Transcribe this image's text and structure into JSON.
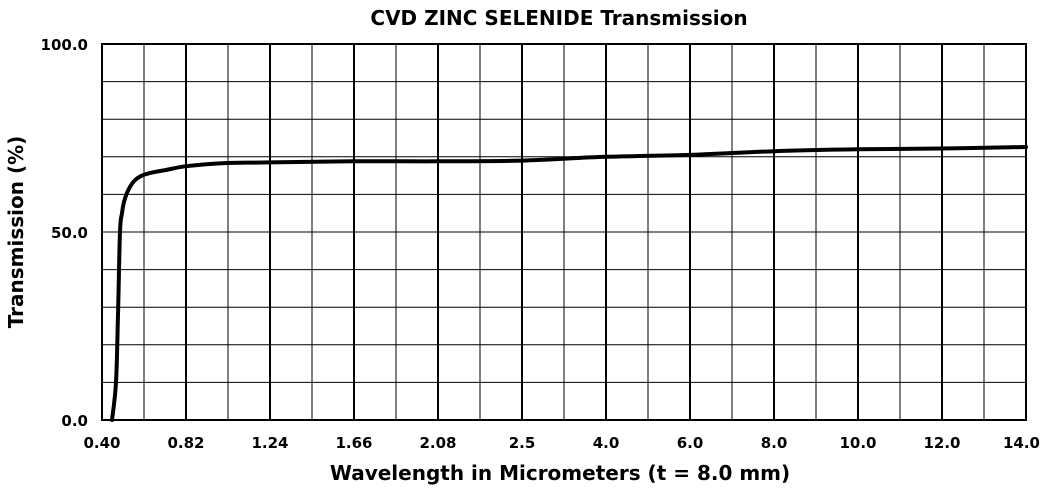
{
  "chart_data": {
    "type": "line",
    "title": "CVD ZINC SELENIDE Transmission",
    "xlabel": "Wavelength in Micrometers (t = 8.0 mm)",
    "ylabel": "Transmission  (%)",
    "ylim": [
      0,
      100
    ],
    "y_ticks": [
      "0.0",
      "50.0",
      "100.0"
    ],
    "y_tick_values": [
      0,
      50,
      100
    ],
    "y_grid_values": [
      0,
      10,
      20,
      30,
      40,
      50,
      60,
      70,
      80,
      90,
      100
    ],
    "x_scale": "piecewise (labeled ticks equally spaced)",
    "x_ticks": [
      "0.40",
      "0.82",
      "1.24",
      "1.66",
      "2.08",
      "2.5",
      "4.0",
      "6.0",
      "8.0",
      "10.0",
      "12.0",
      "14.0"
    ],
    "x_tick_values": [
      0.4,
      0.82,
      1.24,
      1.66,
      2.08,
      2.5,
      4.0,
      6.0,
      8.0,
      10.0,
      12.0,
      14.0
    ],
    "x_minor_grid_values": [
      0.61,
      1.03,
      1.45,
      1.87,
      2.29,
      3.25,
      5.0,
      7.0,
      9.0,
      11.0,
      13.0
    ],
    "grid": true,
    "series": [
      {
        "x": [
          0.45,
          0.47,
          0.48,
          0.49,
          0.5,
          0.51,
          0.53,
          0.56,
          0.6,
          0.65,
          0.72,
          0.82,
          1.0,
          1.24,
          1.66,
          2.08,
          2.5,
          4.0,
          6.0,
          8.0,
          10.0,
          12.0,
          14.0
        ],
        "y": [
          0,
          10,
          28,
          50,
          55,
          58,
          61,
          63.5,
          65,
          65.8,
          66.5,
          67.5,
          68.3,
          68.5,
          68.8,
          68.8,
          69.0,
          70.0,
          70.5,
          71.5,
          72.0,
          72.2,
          72.6
        ]
      }
    ]
  }
}
